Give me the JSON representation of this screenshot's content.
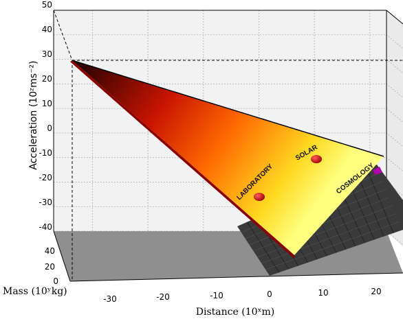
{
  "chart_data": {
    "type": "3d-surface",
    "title": "",
    "xlabel": "Distance (10ˣm)",
    "ylabel": "Mass (10ʸkg)",
    "zlabel": "Acceleration  (10ᶻms⁻²)",
    "x_ticks": [
      "-30",
      "-20",
      "-10",
      "0",
      "10",
      "20"
    ],
    "y_ticks": [
      "0",
      "20",
      "40"
    ],
    "z_ticks": [
      "50",
      "40",
      "30",
      "20",
      "10",
      "0",
      "-10",
      "-20",
      "-30",
      "-40"
    ],
    "xlim": [
      -37,
      23
    ],
    "ylim": [
      0,
      50
    ],
    "zlim": [
      -40,
      50
    ],
    "grid": true,
    "regions": [
      {
        "name": "LABORATORY",
        "x": -2,
        "z": -27
      },
      {
        "name": "SOLAR",
        "x": 8,
        "z": -12
      },
      {
        "name": "COSMOLOGY",
        "x": 20,
        "z": -17
      }
    ],
    "surface_vertices": [
      {
        "x": -37,
        "z": 30
      },
      {
        "x": 22,
        "z": -10
      },
      {
        "x": 3,
        "z": -45
      }
    ],
    "colors": {
      "surface_high": "#1a0000",
      "surface_mid": "#d42000",
      "surface_low": "#ffff66",
      "marker": "#cc0000",
      "cosmology_marker": "#b000b0",
      "floor": "#8a8a8a",
      "plane": "#3a3a3a"
    }
  }
}
